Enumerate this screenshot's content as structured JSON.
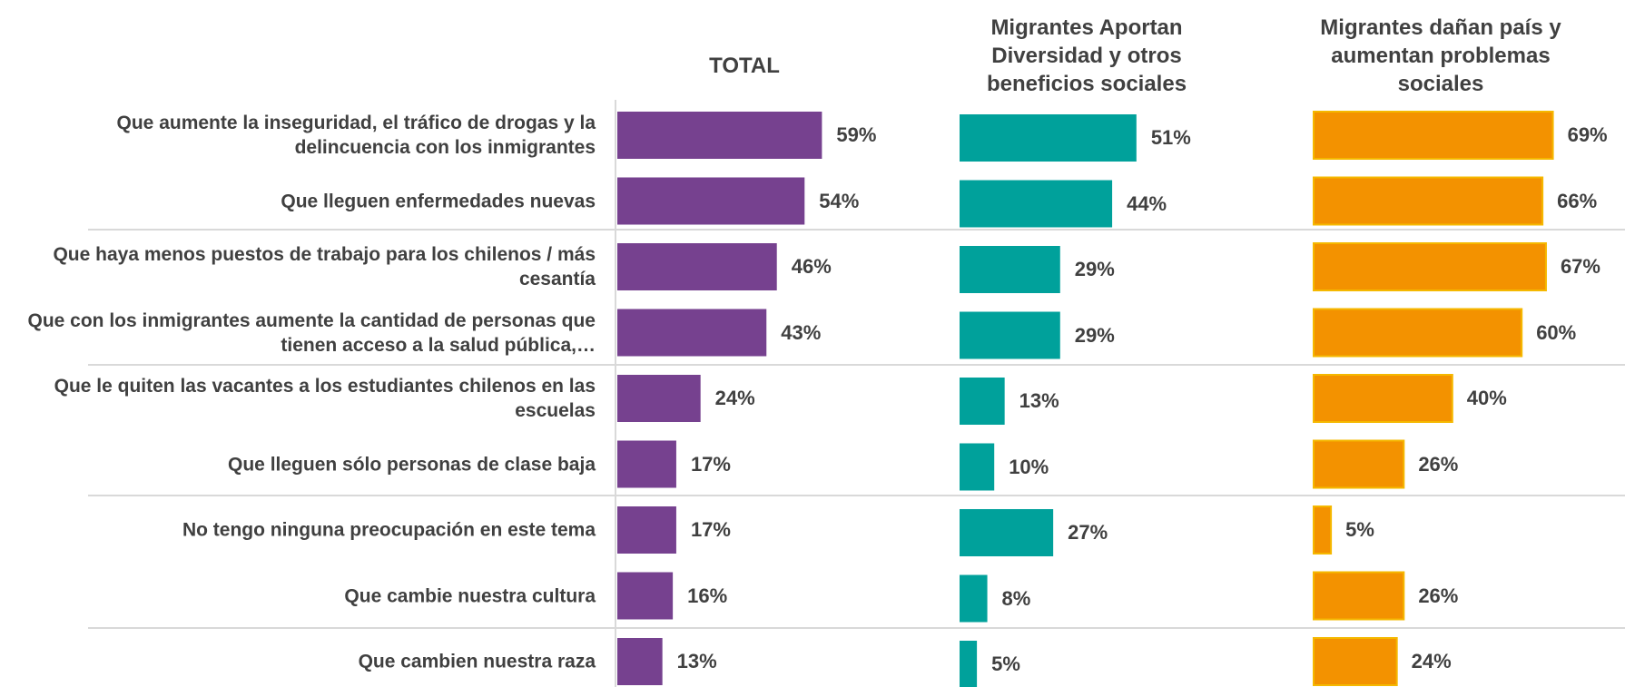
{
  "chart_data": {
    "type": "bar",
    "orientation": "horizontal",
    "xlim": [
      0,
      100
    ],
    "categories": [
      "Que aumente la inseguridad, el tráfico de drogas y la delincuencia con los inmigrantes",
      "Que lleguen enfermedades nuevas",
      "Que haya menos puestos de trabajo para los chilenos / más cesantía",
      "Que con los inmigrantes aumente la cantidad de personas que tienen acceso a la salud pública,…",
      "Que le quiten las vacantes a los estudiantes chilenos en las escuelas",
      "Que lleguen sólo personas de clase baja",
      "No tengo ninguna preocupación en este tema",
      "Que cambie nuestra cultura",
      "Que cambien nuestra raza"
    ],
    "series": [
      {
        "name": "TOTAL",
        "color": "#76418f",
        "values": [
          59,
          54,
          46,
          43,
          24,
          17,
          17,
          16,
          13
        ],
        "value_labels": [
          "59%",
          "54%",
          "46%",
          "43%",
          "24%",
          "17%",
          "17%",
          "16%",
          "13%"
        ]
      },
      {
        "name": "Migrantes Aportan Diversidad y otros beneficios sociales",
        "color": "#00a19b",
        "values": [
          51,
          44,
          29,
          29,
          13,
          10,
          27,
          8,
          5
        ],
        "value_labels": [
          "51%",
          "44%",
          "29%",
          "29%",
          "13%",
          "10%",
          "27%",
          "8%",
          "5%"
        ]
      },
      {
        "name": "Migrantes dañan país y aumentan problemas sociales",
        "color": "#f39200",
        "values": [
          69,
          66,
          67,
          60,
          40,
          26,
          5,
          26,
          24
        ],
        "value_labels": [
          "69%",
          "66%",
          "67%",
          "60%",
          "40%",
          "26%",
          "5%",
          "26%",
          "24%"
        ]
      }
    ]
  }
}
